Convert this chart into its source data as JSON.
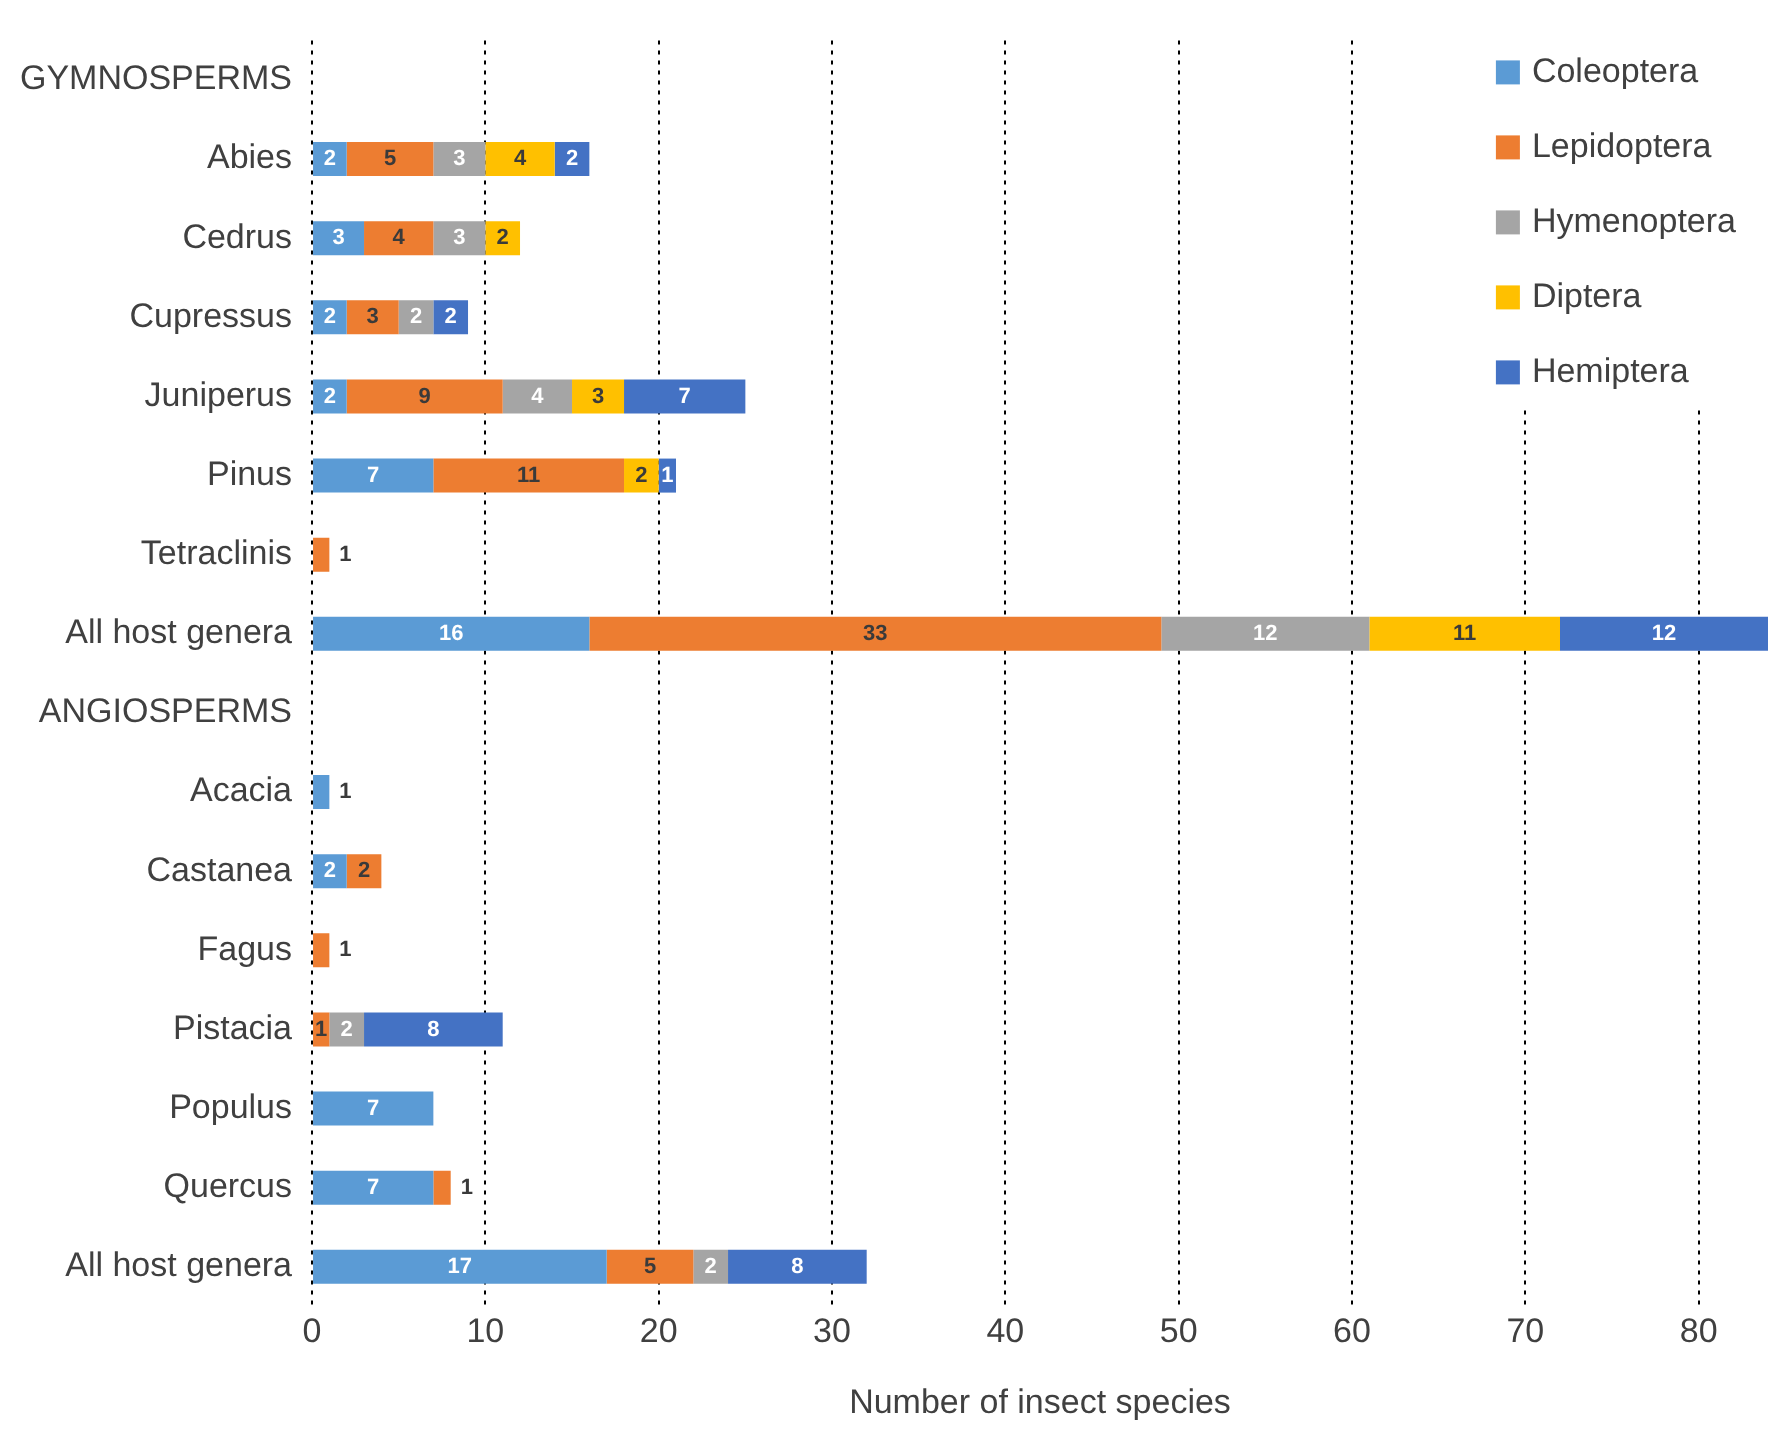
{
  "chart_data": {
    "type": "bar",
    "orientation": "horizontal",
    "stacked": true,
    "xlabel": "Number of insect species",
    "categories": [
      "GYMNOSPERMS",
      "Abies",
      "Cedrus",
      "Cupressus",
      "Juniperus",
      "Pinus",
      "Tetraclinis",
      "All host genera",
      "ANGIOSPERMS",
      "Acacia",
      "Castanea",
      "Fagus",
      "Pistacia",
      "Populus",
      "Quercus",
      "All host genera"
    ],
    "series": [
      {
        "name": "Coleoptera",
        "color": "#5b9bd5",
        "values": [
          null,
          2,
          3,
          2,
          2,
          7,
          null,
          16,
          null,
          1,
          2,
          null,
          null,
          7,
          7,
          17
        ]
      },
      {
        "name": "Lepidoptera",
        "color": "#ed7d31",
        "values": [
          null,
          5,
          4,
          3,
          9,
          11,
          1,
          33,
          null,
          null,
          2,
          1,
          1,
          null,
          1,
          5
        ]
      },
      {
        "name": "Hymenoptera",
        "color": "#a5a5a5",
        "values": [
          null,
          3,
          3,
          2,
          4,
          null,
          null,
          12,
          null,
          null,
          null,
          null,
          2,
          null,
          null,
          2
        ]
      },
      {
        "name": "Diptera",
        "color": "#ffc000",
        "values": [
          null,
          4,
          2,
          null,
          3,
          2,
          null,
          11,
          null,
          null,
          null,
          null,
          null,
          null,
          null,
          null
        ]
      },
      {
        "name": "Hemiptera",
        "color": "#4472c4",
        "values": [
          null,
          2,
          null,
          2,
          7,
          1,
          null,
          12,
          null,
          null,
          null,
          null,
          8,
          null,
          null,
          8
        ]
      }
    ],
    "xlim": [
      0,
      84
    ],
    "xticks": [
      0,
      10,
      20,
      30,
      40,
      50,
      60,
      70,
      80
    ],
    "grid": "x",
    "legend": "top right",
    "data_labels": true
  }
}
